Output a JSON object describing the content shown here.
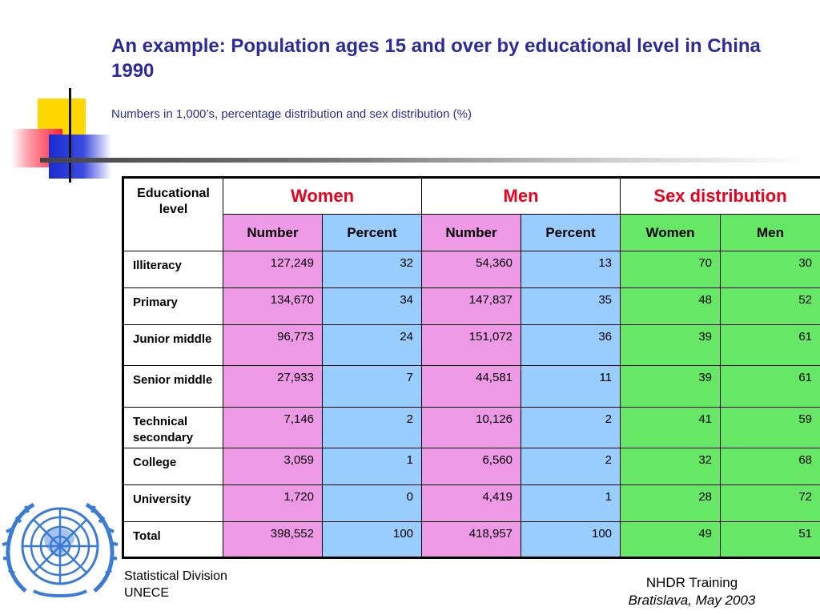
{
  "slide": {
    "title": "An example: Population ages 15 and over by educational level in China 1990",
    "subtitle": "Numbers in 1,000’s, percentage distribution and sex distribution (%)"
  },
  "table": {
    "header": {
      "edu_label": "Educational level",
      "groups": [
        "Women",
        "Men",
        "Sex distribution"
      ],
      "subheaders": [
        "Number",
        "Percent",
        "Number",
        "Percent",
        "Women",
        "Men"
      ]
    },
    "rows": [
      {
        "label": "Illiteracy",
        "cells": [
          "127,249",
          "32",
          "54,360",
          "13",
          "70",
          "30"
        ]
      },
      {
        "label": "Primary",
        "cells": [
          "134,670",
          "34",
          "147,837",
          "35",
          "48",
          "52"
        ]
      },
      {
        "label": "Junior middle",
        "cells": [
          "96,773",
          "24",
          "151,072",
          "36",
          "39",
          "61"
        ]
      },
      {
        "label": "Senior middle",
        "cells": [
          "27,933",
          "7",
          "44,581",
          "11",
          "39",
          "61"
        ]
      },
      {
        "label": "Technical secondary",
        "cells": [
          "7,146",
          "2",
          "10,126",
          "2",
          "41",
          "59"
        ]
      },
      {
        "label": "College",
        "cells": [
          "3,059",
          "1",
          "6,560",
          "2",
          "32",
          "68"
        ]
      },
      {
        "label": "University",
        "cells": [
          "1,720",
          "0",
          "4,419",
          "1",
          "28",
          "72"
        ]
      },
      {
        "label": "Total",
        "cells": [
          "398,552",
          "100",
          "418,957",
          "100",
          "49",
          "51"
        ]
      }
    ]
  },
  "footer": {
    "left_line1": "Statistical Division",
    "left_line2": "UNECE",
    "right_line1": "NHDR Training",
    "right_line2": "Bratislava, May 2003"
  },
  "colors": {
    "title": "#2b2b9b",
    "group_header": "#e8001c",
    "women_fill": "#ee99e6",
    "men_fill": "#99ccff",
    "sexdist_fill": "#66e866"
  }
}
